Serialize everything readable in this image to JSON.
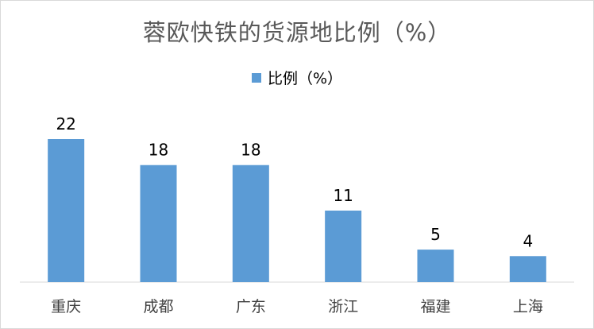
{
  "chart_data": {
    "type": "bar",
    "title": "蓉欧快铁的货源地比例（%）",
    "categories": [
      "重庆",
      "成都",
      "广东",
      "浙江",
      "福建",
      "上海"
    ],
    "series": [
      {
        "name": "比例（%）",
        "values": [
          22,
          18,
          18,
          11,
          5,
          4
        ]
      }
    ],
    "xlabel": "",
    "ylabel": "",
    "ylim": [
      0,
      22
    ],
    "grid": false,
    "legend": "top",
    "colors": {
      "bar": "#5b9bd5",
      "axis": "#d9d9d9"
    }
  }
}
